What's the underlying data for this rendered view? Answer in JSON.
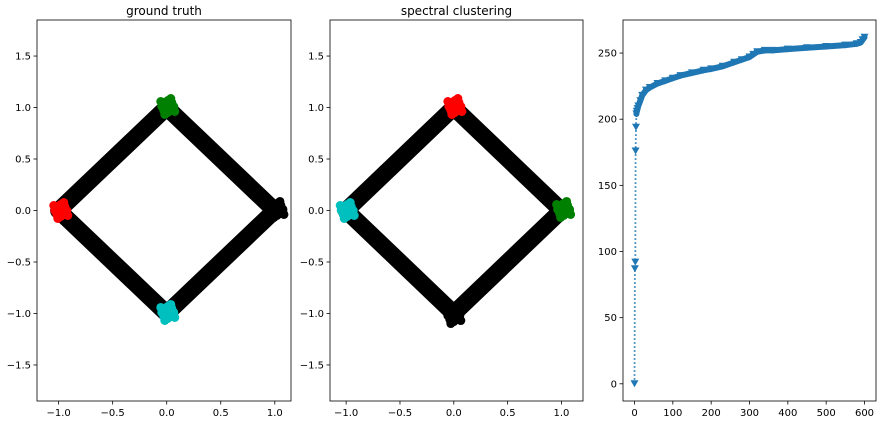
{
  "chart_data": [
    {
      "type": "scatter",
      "title": "ground truth",
      "xlabel": "",
      "ylabel": "",
      "xlim": [
        -1.2,
        1.15
      ],
      "ylim": [
        -1.85,
        1.85
      ],
      "xticks": [
        -1.0,
        -0.5,
        0.0,
        0.5,
        1.0
      ],
      "xtick_labels": [
        "−1.0",
        "−0.5",
        "0.0",
        "0.5",
        "1.0"
      ],
      "yticks": [
        -1.5,
        -1.0,
        -0.5,
        0.0,
        0.5,
        1.0,
        1.5
      ],
      "ytick_labels": [
        "−1.5",
        "−1.0",
        "−0.5",
        "0.0",
        "0.5",
        "1.0",
        "1.5"
      ],
      "grid": false,
      "series": [
        {
          "points": [
            [
              -1,
              0
            ],
            [
              0,
              1
            ],
            [
              1,
              0
            ],
            [
              0,
              -1
            ],
            [
              -1,
              0
            ]
          ],
          "style": "thick-band",
          "color": "#000000"
        },
        {
          "points": [
            [
              1.02,
              0.01
            ]
          ],
          "color": "#000000"
        },
        {
          "points": [
            [
              -0.98,
              0.0
            ]
          ],
          "color": "#ff0000"
        },
        {
          "points": [
            [
              0.01,
              1.01
            ]
          ],
          "color": "#008000"
        },
        {
          "points": [
            [
              0.01,
              -0.99
            ]
          ],
          "color": "#00bfbf"
        }
      ]
    },
    {
      "type": "scatter",
      "title": "spectral clustering",
      "xlabel": "",
      "ylabel": "",
      "xlim": [
        -1.15,
        1.2
      ],
      "ylim": [
        -1.85,
        1.85
      ],
      "xticks": [
        -1.0,
        -0.5,
        0.0,
        0.5,
        1.0
      ],
      "xtick_labels": [
        "−1.0",
        "−0.5",
        "0.0",
        "0.5",
        "1.0"
      ],
      "yticks": [
        -1.5,
        -1.0,
        -0.5,
        0.0,
        0.5,
        1.0,
        1.5
      ],
      "ytick_labels": [
        "−1.5",
        "−1.0",
        "−0.5",
        "0.0",
        "0.5",
        "1.0",
        "1.5"
      ],
      "grid": false,
      "series": [
        {
          "points": [
            [
              -1,
              0
            ],
            [
              0,
              1
            ],
            [
              1,
              0
            ],
            [
              0,
              -1
            ],
            [
              -1,
              0
            ]
          ],
          "style": "thick-band",
          "color": "#000000"
        },
        {
          "points": [
            [
              0.0,
              -1.02
            ]
          ],
          "color": "#000000"
        },
        {
          "points": [
            [
              -0.99,
              0.0
            ]
          ],
          "color": "#00bfbf"
        },
        {
          "points": [
            [
              0.01,
              1.01
            ]
          ],
          "color": "#ff0000"
        },
        {
          "points": [
            [
              1.02,
              0.01
            ]
          ],
          "color": "#008000"
        }
      ]
    },
    {
      "type": "line",
      "title": "",
      "xlabel": "",
      "ylabel": "",
      "xlim": [
        -30,
        630
      ],
      "ylim": [
        -13,
        275
      ],
      "xticks": [
        0,
        100,
        200,
        300,
        400,
        500,
        600
      ],
      "xtick_labels": [
        "0",
        "100",
        "200",
        "300",
        "400",
        "500",
        "600"
      ],
      "yticks": [
        0,
        50,
        100,
        150,
        200,
        250
      ],
      "ytick_labels": [
        "0",
        "50",
        "100",
        "150",
        "200",
        "250"
      ],
      "grid": false,
      "color": "#1f77b4",
      "line_style": "dotted",
      "marker": "triangle-down",
      "series": [
        {
          "x": [
            0,
            1,
            2,
            3,
            4,
            5,
            6,
            8,
            10,
            15,
            20,
            30,
            40,
            60,
            80,
            100,
            120,
            150,
            180,
            200,
            230,
            260,
            280,
            300,
            310,
            320,
            340,
            360,
            400,
            450,
            500,
            550,
            580,
            590,
            595,
            600
          ],
          "y": [
            0,
            87,
            92,
            176,
            194,
            204,
            206,
            208,
            210,
            214,
            218,
            222,
            224,
            227,
            229,
            231,
            233,
            235,
            237,
            238,
            240,
            243,
            245,
            247,
            249,
            251,
            252,
            252,
            253,
            254,
            255,
            256,
            257,
            258,
            260,
            262
          ]
        }
      ]
    }
  ]
}
